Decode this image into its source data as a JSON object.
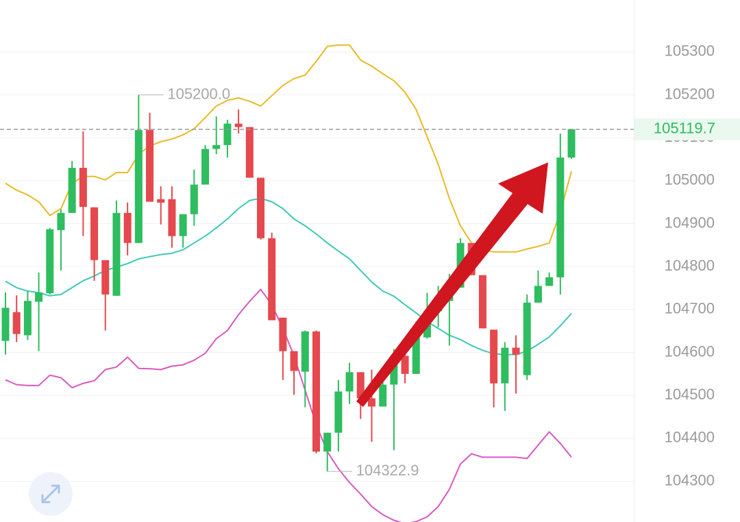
{
  "chart_data": {
    "type": "candlestick",
    "up_color": "#2ebd5f",
    "down_color": "#e5484d",
    "open": [
      104627,
      104694,
      104640,
      104718,
      104738,
      104885,
      104925,
      105030,
      104938,
      104815,
      104732,
      104925,
      104855,
      105118,
      104957,
      104957,
      104871,
      104922,
      104991,
      105074,
      105083,
      105133,
      105125,
      105007,
      104866,
      104681,
      104603,
      104555,
      104649,
      104369,
      104413,
      104509,
      104554,
      104493,
      104474,
      104525,
      104592,
      104550,
      104635,
      104696,
      104720,
      104751,
      104855,
      104780,
      104653,
      104528,
      104611,
      104547,
      104716,
      104755,
      104775,
      105054
    ],
    "high": [
      104740,
      104733,
      104743,
      104786,
      104890,
      104933,
      105046,
      105115,
      104938,
      104815,
      104954,
      104949,
      105200,
      105158,
      104987,
      104987,
      104922,
      105026,
      105083,
      105150,
      105142,
      105166,
      105125,
      105007,
      104879,
      104681,
      104603,
      104651,
      104651,
      104413,
      104536,
      104576,
      104554,
      104560,
      104560,
      104608,
      104608,
      104672,
      104739,
      104755,
      104783,
      104866,
      104855,
      104780,
      104653,
      104624,
      104640,
      104735,
      104791,
      104786,
      105110,
      105121
    ],
    "low": [
      104595,
      104624,
      104629,
      104603,
      104735,
      104791,
      104925,
      104871,
      104767,
      104651,
      104732,
      104826,
      104855,
      104951,
      104898,
      104844,
      104844,
      104895,
      104991,
      105062,
      105054,
      105110,
      105007,
      104863,
      104675,
      104536,
      104501,
      104472,
      104365,
      104322.9,
      104369,
      104480,
      104445,
      104392,
      104474,
      104372,
      104528,
      104550,
      104632,
      104659,
      104616,
      104751,
      104780,
      104656,
      104472,
      104464,
      104504,
      104536,
      104716,
      104755,
      104735,
      105051
    ],
    "close": [
      104704,
      104643,
      104720,
      104740,
      104887,
      104925,
      105030,
      104939,
      104815,
      104735,
      104925,
      104855,
      105118,
      104951,
      104949,
      104871,
      104922,
      104991,
      105074,
      105083,
      105133,
      105125,
      105007,
      104866,
      104675,
      104603,
      104557,
      104649,
      104369,
      104413,
      104509,
      104554,
      104493,
      104474,
      104525,
      104592,
      104550,
      104635,
      104696,
      104720,
      104755,
      104855,
      104780,
      104656,
      104528,
      104611,
      104595,
      104716,
      104755,
      104775,
      105054,
      105119.7
    ],
    "bands": [
      {
        "color": "#e8b923",
        "values": [
          104994,
          104978,
          104967,
          104951,
          104919,
          104935,
          104994,
          105010,
          105010,
          105002,
          105019,
          105019,
          105062,
          105081,
          105091,
          105097,
          105107,
          105121,
          105147,
          105174,
          105187,
          105193,
          105185,
          105174,
          105198,
          105222,
          105238,
          105246,
          105278,
          105313,
          105316,
          105316,
          105281,
          105267,
          105249,
          105233,
          105206,
          105166,
          105102,
          105038,
          104959,
          104895,
          104855,
          104839,
          104834,
          104834,
          104834,
          104841,
          104847,
          104855,
          104927,
          105022
        ]
      },
      {
        "color": "#3cc9b4",
        "values": [
          104766,
          104751,
          104743,
          104739,
          104732,
          104735,
          104751,
          104767,
          104778,
          104791,
          104799,
          104807,
          104818,
          104823,
          104828,
          104831,
          104839,
          104855,
          104871,
          104890,
          104911,
          104935,
          104954,
          104959,
          104951,
          104935,
          104911,
          104895,
          104876,
          104855,
          104836,
          104818,
          104791,
          104764,
          104743,
          104731,
          104711,
          104692,
          104672,
          104656,
          104640,
          104630,
          104616,
          104605,
          104597,
          104595,
          104595,
          104603,
          104619,
          104636,
          104662,
          104691
        ]
      },
      {
        "color": "#d957c0",
        "values": [
          104536,
          104525,
          104523,
          104523,
          104547,
          104541,
          104518,
          104528,
          104534,
          104560,
          104566,
          104589,
          104563,
          104562,
          104560,
          104568,
          104571,
          104582,
          104598,
          104632,
          104651,
          104688,
          104719,
          104747,
          104711,
          104656,
          104592,
          104512,
          104432,
          104369,
          104329,
          104297,
          104270,
          104241,
          104222,
          104209,
          104201,
          104206,
          104217,
          104241,
          104281,
          104340,
          104364,
          104356,
          104356,
          104356,
          104356,
          104353,
          104384,
          104415,
          104388,
          104356
        ]
      }
    ],
    "ylim": [
      104205,
      105421
    ],
    "yticks": [
      104300,
      104400,
      104500,
      104600,
      104700,
      104800,
      104900,
      105000,
      105100,
      105200,
      105300
    ],
    "grid": true,
    "max_annotation": {
      "value": 105200,
      "label": "105200.0"
    },
    "min_annotation": {
      "value": 104322.9,
      "label": "104322.9"
    },
    "last_price": 105119.7
  }
}
